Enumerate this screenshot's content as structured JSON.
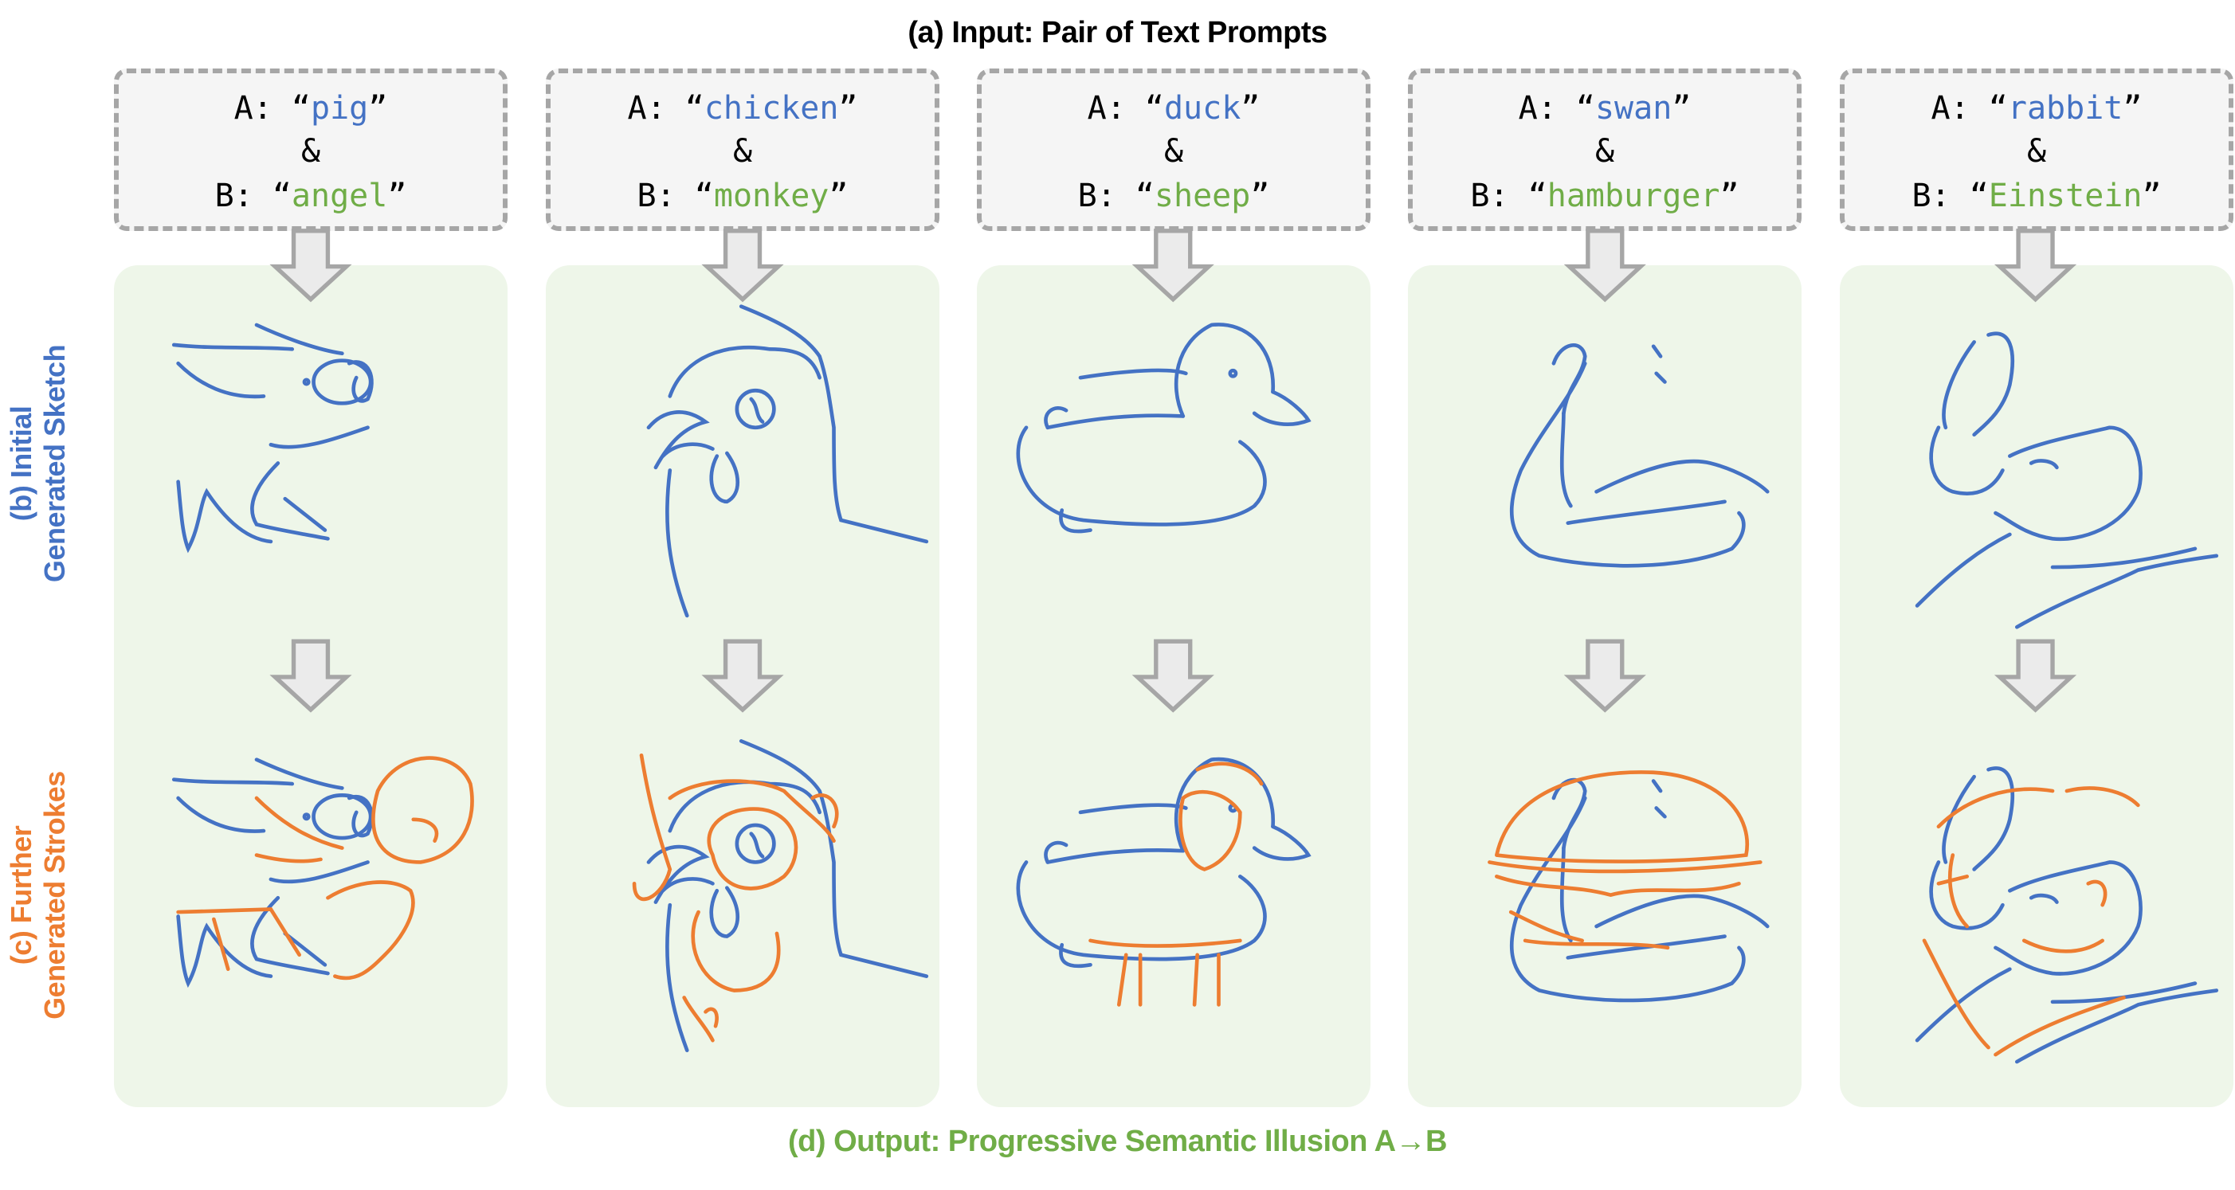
{
  "header": {
    "title": "(a) Input: Pair of Text Prompts"
  },
  "prompts": [
    {
      "a_label": "A:",
      "b_label": "B:",
      "amp": "&",
      "open_quote": "“",
      "close_quote": "”",
      "a_word": "pig",
      "b_word": "angel"
    },
    {
      "a_label": "A:",
      "b_label": "B:",
      "amp": "&",
      "open_quote": "“",
      "close_quote": "”",
      "a_word": "chicken",
      "b_word": "monkey"
    },
    {
      "a_label": "A:",
      "b_label": "B:",
      "amp": "&",
      "open_quote": "“",
      "close_quote": "”",
      "a_word": "duck",
      "b_word": "sheep"
    },
    {
      "a_label": "A:",
      "b_label": "B:",
      "amp": "&",
      "open_quote": "“",
      "close_quote": "”",
      "a_word": "swan",
      "b_word": "hamburger"
    },
    {
      "a_label": "A:",
      "b_label": "B:",
      "amp": "&",
      "open_quote": "“",
      "close_quote": "”",
      "a_word": "rabbit",
      "b_word": "Einstein"
    }
  ],
  "side_labels": {
    "initial": {
      "line1": "(b) Initial",
      "line2": "Generated Sketch"
    },
    "further": {
      "line1": "(c) Further",
      "line2": "Generated Strokes"
    }
  },
  "footer": {
    "title": "(d) Output: Progressive Semantic Illusion A→B"
  },
  "colors": {
    "prompt_a": "#4472C4",
    "prompt_b": "#70AD47",
    "initial_strokes": "#4472C4",
    "further_strokes": "#ED7D31",
    "panel_bg": "#EEF6E9",
    "arrow_fill": "#EBEBEB",
    "arrow_stroke": "#A6A6A6"
  },
  "icons": {
    "step_arrow": "down-arrow-icon"
  }
}
